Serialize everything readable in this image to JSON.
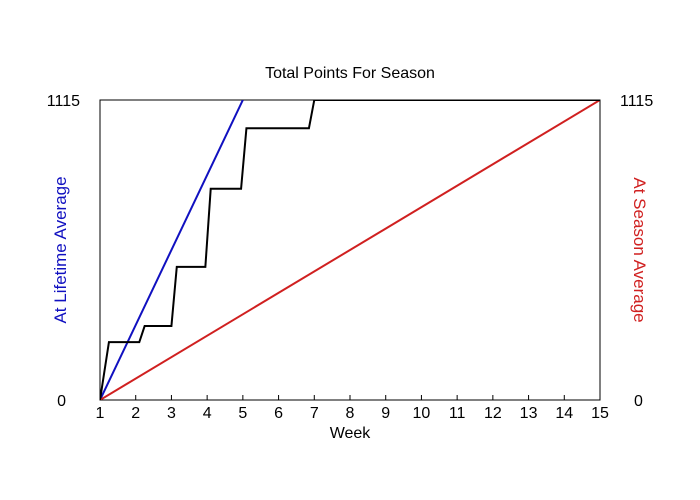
{
  "chart_data": {
    "type": "line",
    "title": "Total Points For Season",
    "xlabel": "Week",
    "ylabel_left": "At Lifetime Average",
    "ylabel_right": "At Season Average",
    "xlim": [
      1,
      15
    ],
    "ylim": [
      0,
      1115
    ],
    "x_ticks": [
      "1",
      "2",
      "3",
      "4",
      "5",
      "6",
      "7",
      "8",
      "9",
      "10",
      "11",
      "12",
      "13",
      "14",
      "15"
    ],
    "y_tick_labels_left": [
      "0",
      "1115"
    ],
    "y_tick_labels_right": [
      "0",
      "1115"
    ],
    "grid": false,
    "series": [
      {
        "color": "#1010c0",
        "x": [
          1,
          5
        ],
        "y": [
          0,
          1115
        ]
      },
      {
        "color": "#d02020",
        "x": [
          1,
          15
        ],
        "y": [
          0,
          1115
        ]
      },
      {
        "color": "#000000",
        "x": [
          1,
          1.25,
          2.1,
          2.25,
          3.0,
          3.15,
          3.95,
          4.1,
          4.95,
          5.1,
          6.85,
          7.0,
          15
        ],
        "y": [
          0,
          215,
          215,
          275,
          275,
          495,
          495,
          785,
          785,
          1010,
          1010,
          1115,
          1115
        ]
      }
    ]
  }
}
